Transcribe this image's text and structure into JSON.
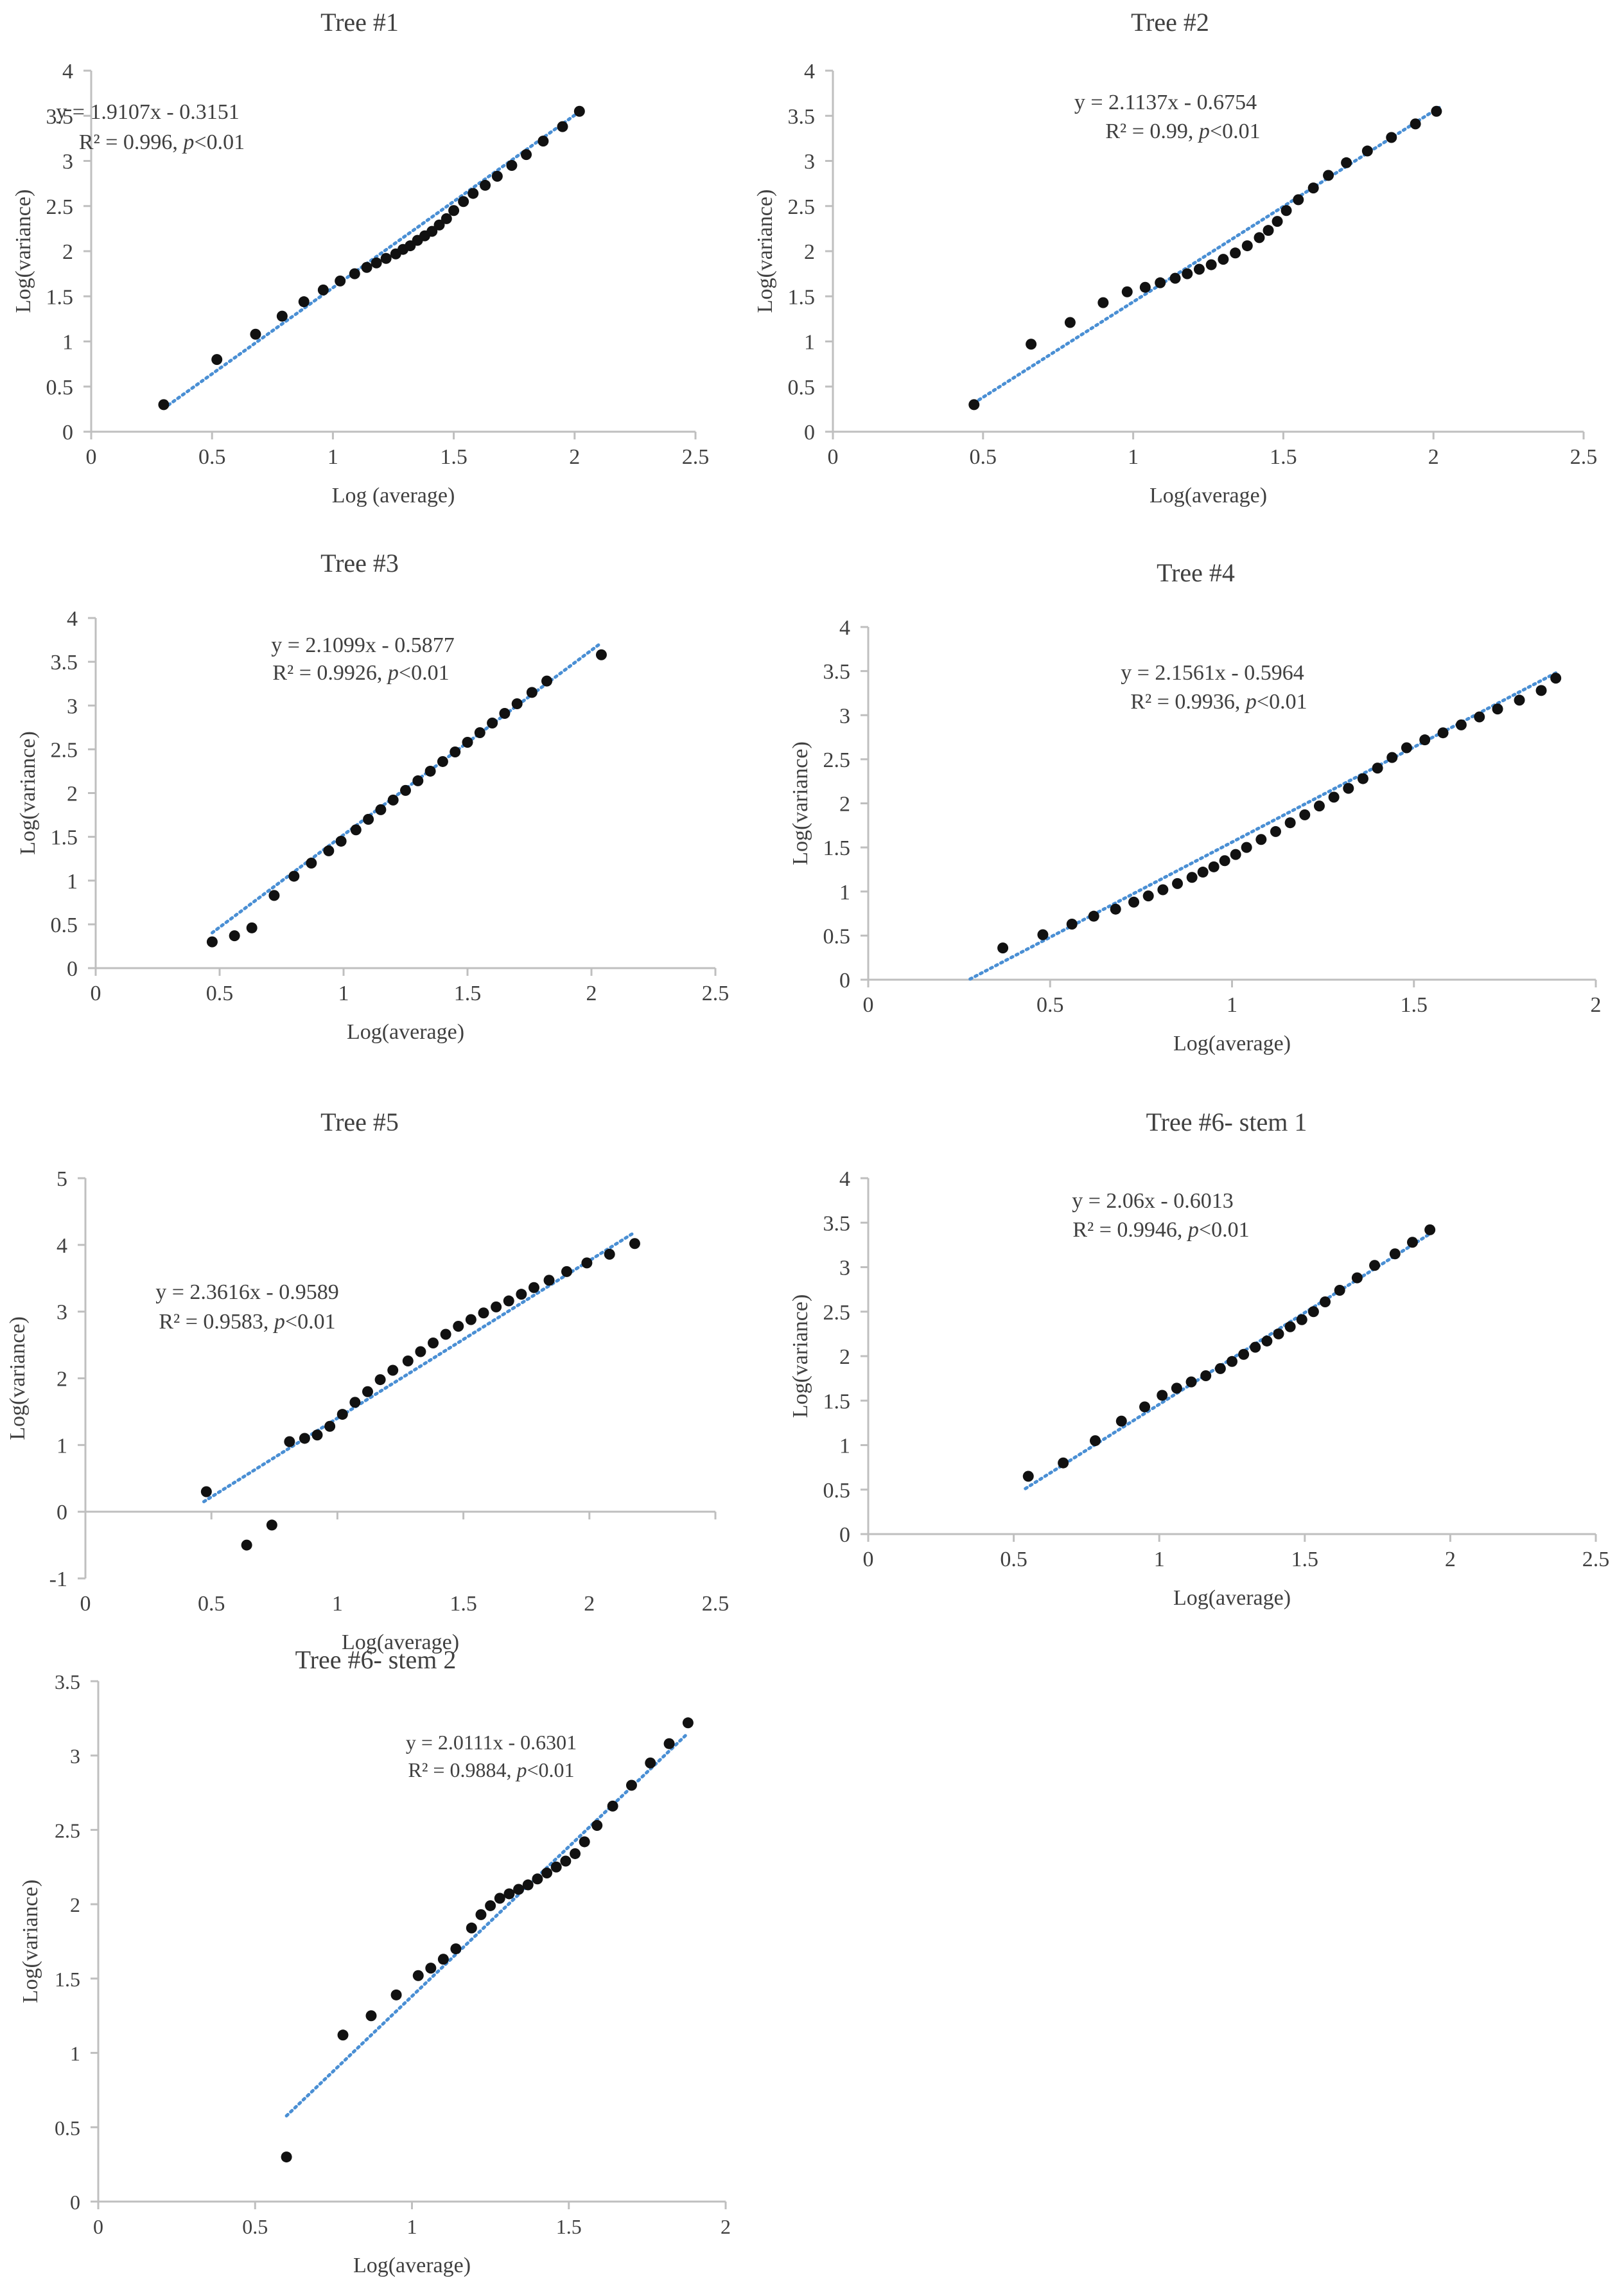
{
  "colors": {
    "point": "#111111",
    "trend": "#4a8fd4",
    "axis": "#bfbfbf",
    "text": "#404040"
  },
  "chart_data": [
    {
      "type": "scatter",
      "title": "Tree #1",
      "xlabel": "Log (average)",
      "ylabel": "Log(variance)",
      "xlim": [
        0,
        2.5
      ],
      "ylim": [
        0,
        4
      ],
      "xticks": [
        0,
        0.5,
        1,
        1.5,
        2,
        2.5
      ],
      "yticks": [
        0,
        0.5,
        1,
        1.5,
        2,
        2.5,
        3,
        3.5,
        4
      ],
      "xtick_labels": [
        "0",
        "0.5",
        "1",
        "1.5",
        "2",
        "2.5"
      ],
      "ytick_labels": [
        "0",
        "0.5",
        "1",
        "1.5",
        "2",
        "2.5",
        "3",
        "3.5",
        "4"
      ],
      "equation": "y = 1.9107x - 0.3151",
      "r2_text": "R² = 0.996, ",
      "p_italic": "p",
      "p_text": "<0.01",
      "trend": {
        "slope": 1.9107,
        "intercept": -0.3151,
        "x_range": [
          0.3,
          2.02
        ]
      },
      "points": [
        [
          0.3,
          0.3
        ],
        [
          0.52,
          0.8
        ],
        [
          0.68,
          1.08
        ],
        [
          0.79,
          1.28
        ],
        [
          0.88,
          1.44
        ],
        [
          0.96,
          1.57
        ],
        [
          1.03,
          1.67
        ],
        [
          1.09,
          1.75
        ],
        [
          1.14,
          1.82
        ],
        [
          1.18,
          1.87
        ],
        [
          1.22,
          1.92
        ],
        [
          1.26,
          1.97
        ],
        [
          1.29,
          2.02
        ],
        [
          1.32,
          2.06
        ],
        [
          1.35,
          2.12
        ],
        [
          1.38,
          2.17
        ],
        [
          1.41,
          2.22
        ],
        [
          1.44,
          2.29
        ],
        [
          1.47,
          2.36
        ],
        [
          1.5,
          2.45
        ],
        [
          1.54,
          2.55
        ],
        [
          1.58,
          2.64
        ],
        [
          1.63,
          2.73
        ],
        [
          1.68,
          2.83
        ],
        [
          1.74,
          2.95
        ],
        [
          1.8,
          3.07
        ],
        [
          1.87,
          3.22
        ],
        [
          1.95,
          3.38
        ],
        [
          2.02,
          3.55
        ]
      ]
    },
    {
      "type": "scatter",
      "title": "Tree #2",
      "xlabel": "Log(average)",
      "ylabel": "Log(variance)",
      "xlim": [
        0,
        2.5
      ],
      "ylim": [
        0,
        4
      ],
      "xticks": [
        0,
        0.5,
        1,
        1.5,
        2,
        2.5
      ],
      "yticks": [
        0,
        0.5,
        1,
        1.5,
        2,
        2.5,
        3,
        3.5,
        4
      ],
      "xtick_labels": [
        "0",
        "0.5",
        "1",
        "1.5",
        "2",
        "2.5"
      ],
      "ytick_labels": [
        "0",
        "0.5",
        "1",
        "1.5",
        "2",
        "2.5",
        "3",
        "3.5",
        "4"
      ],
      "equation": "y = 2.1137x - 0.6754",
      "r2_text": "R² = 0.99, ",
      "p_italic": "p",
      "p_text": "<0.01",
      "trend": {
        "slope": 2.1137,
        "intercept": -0.6754,
        "x_range": [
          0.47,
          2.02
        ]
      },
      "points": [
        [
          0.47,
          0.3
        ],
        [
          0.66,
          0.97
        ],
        [
          0.79,
          1.21
        ],
        [
          0.9,
          1.43
        ],
        [
          0.98,
          1.55
        ],
        [
          1.04,
          1.6
        ],
        [
          1.09,
          1.65
        ],
        [
          1.14,
          1.7
        ],
        [
          1.18,
          1.75
        ],
        [
          1.22,
          1.8
        ],
        [
          1.26,
          1.85
        ],
        [
          1.3,
          1.91
        ],
        [
          1.34,
          1.98
        ],
        [
          1.38,
          2.06
        ],
        [
          1.42,
          2.15
        ],
        [
          1.45,
          2.23
        ],
        [
          1.48,
          2.33
        ],
        [
          1.51,
          2.45
        ],
        [
          1.55,
          2.57
        ],
        [
          1.6,
          2.7
        ],
        [
          1.65,
          2.84
        ],
        [
          1.71,
          2.98
        ],
        [
          1.78,
          3.11
        ],
        [
          1.86,
          3.26
        ],
        [
          1.94,
          3.41
        ],
        [
          2.01,
          3.55
        ]
      ]
    },
    {
      "type": "scatter",
      "title": "Tree #3",
      "xlabel": "Log(average)",
      "ylabel": "Log(variance)",
      "xlim": [
        0,
        2.5
      ],
      "ylim": [
        0,
        4
      ],
      "xticks": [
        0,
        0.5,
        1,
        1.5,
        2,
        2.5
      ],
      "yticks": [
        0,
        0.5,
        1,
        1.5,
        2,
        2.5,
        3,
        3.5,
        4
      ],
      "xtick_labels": [
        "0",
        "0.5",
        "1",
        "1.5",
        "2",
        "2.5"
      ],
      "ytick_labels": [
        "0",
        "0.5",
        "1",
        "1.5",
        "2",
        "2.5",
        "3",
        "3.5",
        "4"
      ],
      "equation": "y = 2.1099x - 0.5877",
      "r2_text": "R² = 0.9926, ",
      "p_italic": "p",
      "p_text": "<0.01",
      "trend": {
        "slope": 2.1099,
        "intercept": -0.5877,
        "x_range": [
          0.47,
          2.04
        ]
      },
      "points": [
        [
          0.47,
          0.3
        ],
        [
          0.56,
          0.37
        ],
        [
          0.63,
          0.46
        ],
        [
          0.72,
          0.83
        ],
        [
          0.8,
          1.05
        ],
        [
          0.87,
          1.2
        ],
        [
          0.94,
          1.34
        ],
        [
          0.99,
          1.45
        ],
        [
          1.05,
          1.58
        ],
        [
          1.1,
          1.7
        ],
        [
          1.15,
          1.81
        ],
        [
          1.2,
          1.92
        ],
        [
          1.25,
          2.03
        ],
        [
          1.3,
          2.14
        ],
        [
          1.35,
          2.25
        ],
        [
          1.4,
          2.36
        ],
        [
          1.45,
          2.47
        ],
        [
          1.5,
          2.58
        ],
        [
          1.55,
          2.69
        ],
        [
          1.6,
          2.8
        ],
        [
          1.65,
          2.91
        ],
        [
          1.7,
          3.02
        ],
        [
          1.76,
          3.15
        ],
        [
          1.82,
          3.28
        ],
        [
          2.04,
          3.58
        ]
      ]
    },
    {
      "type": "scatter",
      "title": "Tree #4",
      "xlabel": "Log(average)",
      "ylabel": "Log(variance)",
      "xlim": [
        0,
        2
      ],
      "ylim": [
        0,
        4
      ],
      "xticks": [
        0,
        0.5,
        1,
        1.5,
        2
      ],
      "yticks": [
        0,
        0.5,
        1,
        1.5,
        2,
        2.5,
        3,
        3.5,
        4
      ],
      "xtick_labels": [
        "0",
        "0.5",
        "1",
        "1.5",
        "2"
      ],
      "ytick_labels": [
        "0",
        "0.5",
        "1",
        "1.5",
        "2",
        "2.5",
        "3",
        "3.5",
        "4"
      ],
      "equation": "y = 2.1561x - 0.5964",
      "r2_text": "R² = 0.9936, ",
      "p_italic": "p",
      "p_text": "<0.01",
      "trend": {
        "slope": 2.1561,
        "intercept": -0.5964,
        "x_range": [
          0.28,
          1.89
        ]
      },
      "points": [
        [
          0.37,
          0.36
        ],
        [
          0.48,
          0.51
        ],
        [
          0.56,
          0.63
        ],
        [
          0.62,
          0.72
        ],
        [
          0.68,
          0.8
        ],
        [
          0.73,
          0.88
        ],
        [
          0.77,
          0.95
        ],
        [
          0.81,
          1.02
        ],
        [
          0.85,
          1.09
        ],
        [
          0.89,
          1.16
        ],
        [
          0.92,
          1.22
        ],
        [
          0.95,
          1.28
        ],
        [
          0.98,
          1.35
        ],
        [
          1.01,
          1.42
        ],
        [
          1.04,
          1.5
        ],
        [
          1.08,
          1.59
        ],
        [
          1.12,
          1.68
        ],
        [
          1.16,
          1.78
        ],
        [
          1.2,
          1.87
        ],
        [
          1.24,
          1.97
        ],
        [
          1.28,
          2.07
        ],
        [
          1.32,
          2.17
        ],
        [
          1.36,
          2.28
        ],
        [
          1.4,
          2.4
        ],
        [
          1.44,
          2.52
        ],
        [
          1.48,
          2.63
        ],
        [
          1.53,
          2.72
        ],
        [
          1.58,
          2.8
        ],
        [
          1.63,
          2.89
        ],
        [
          1.68,
          2.98
        ],
        [
          1.73,
          3.07
        ],
        [
          1.79,
          3.17
        ],
        [
          1.85,
          3.28
        ],
        [
          1.89,
          3.42
        ]
      ]
    },
    {
      "type": "scatter",
      "title": "Tree #5",
      "xlabel": "Log(average)",
      "ylabel": "Log(variance)",
      "xlim": [
        0,
        2.5
      ],
      "ylim": [
        -1,
        5
      ],
      "xticks": [
        0,
        0.5,
        1,
        1.5,
        2,
        2.5
      ],
      "yticks": [
        -1,
        0,
        1,
        2,
        3,
        4,
        5
      ],
      "xtick_labels": [
        "0",
        "0.5",
        "1",
        "1.5",
        "2",
        "2.5"
      ],
      "ytick_labels": [
        "-1",
        "0",
        "1",
        "2",
        "3",
        "4",
        "5"
      ],
      "equation": "y = 2.3616x - 0.9589",
      "r2_text": "R² = 0.9583, ",
      "p_italic": "p",
      "p_text": "<0.01",
      "trend": {
        "slope": 2.3616,
        "intercept": -0.9589,
        "x_range": [
          0.47,
          2.18
        ]
      },
      "points": [
        [
          0.48,
          0.3
        ],
        [
          0.64,
          -0.5
        ],
        [
          0.74,
          -0.2
        ],
        [
          0.81,
          1.05
        ],
        [
          0.87,
          1.1
        ],
        [
          0.92,
          1.15
        ],
        [
          0.97,
          1.28
        ],
        [
          1.02,
          1.46
        ],
        [
          1.07,
          1.64
        ],
        [
          1.12,
          1.8
        ],
        [
          1.17,
          1.98
        ],
        [
          1.22,
          2.12
        ],
        [
          1.28,
          2.26
        ],
        [
          1.33,
          2.4
        ],
        [
          1.38,
          2.53
        ],
        [
          1.43,
          2.66
        ],
        [
          1.48,
          2.78
        ],
        [
          1.53,
          2.88
        ],
        [
          1.58,
          2.98
        ],
        [
          1.63,
          3.07
        ],
        [
          1.68,
          3.16
        ],
        [
          1.73,
          3.26
        ],
        [
          1.78,
          3.36
        ],
        [
          1.84,
          3.47
        ],
        [
          1.91,
          3.6
        ],
        [
          1.99,
          3.73
        ],
        [
          2.08,
          3.86
        ],
        [
          2.18,
          4.02
        ]
      ]
    },
    {
      "type": "scatter",
      "title": "Tree #6- stem 1",
      "xlabel": "Log(average)",
      "ylabel": "Log(variance)",
      "xlim": [
        0,
        2.5
      ],
      "ylim": [
        0,
        4
      ],
      "xticks": [
        0,
        0.5,
        1,
        1.5,
        2,
        2.5
      ],
      "yticks": [
        0,
        0.5,
        1,
        1.5,
        2,
        2.5,
        3,
        3.5,
        4
      ],
      "xtick_labels": [
        "0",
        "0.5",
        "1",
        "1.5",
        "2",
        "2.5"
      ],
      "ytick_labels": [
        "0",
        "0.5",
        "1",
        "1.5",
        "2",
        "2.5",
        "3",
        "3.5",
        "4"
      ],
      "equation": "y = 2.06x - 0.6013",
      "r2_text": "R² = 0.9946, ",
      "p_italic": "p",
      "p_text": "<0.01",
      "trend": {
        "slope": 2.06,
        "intercept": -0.6013,
        "x_range": [
          0.54,
          1.93
        ]
      },
      "points": [
        [
          0.55,
          0.65
        ],
        [
          0.67,
          0.8
        ],
        [
          0.78,
          1.05
        ],
        [
          0.87,
          1.27
        ],
        [
          0.95,
          1.43
        ],
        [
          1.01,
          1.56
        ],
        [
          1.06,
          1.64
        ],
        [
          1.11,
          1.71
        ],
        [
          1.16,
          1.78
        ],
        [
          1.21,
          1.86
        ],
        [
          1.25,
          1.94
        ],
        [
          1.29,
          2.02
        ],
        [
          1.33,
          2.1
        ],
        [
          1.37,
          2.17
        ],
        [
          1.41,
          2.25
        ],
        [
          1.45,
          2.33
        ],
        [
          1.49,
          2.41
        ],
        [
          1.53,
          2.5
        ],
        [
          1.57,
          2.61
        ],
        [
          1.62,
          2.74
        ],
        [
          1.68,
          2.88
        ],
        [
          1.74,
          3.02
        ],
        [
          1.81,
          3.15
        ],
        [
          1.87,
          3.28
        ],
        [
          1.93,
          3.42
        ]
      ]
    },
    {
      "type": "scatter",
      "title": "Tree #6- stem 2",
      "xlabel": "Log(average)",
      "ylabel": "Log(variance)",
      "xlim": [
        0,
        2
      ],
      "ylim": [
        0,
        3.5
      ],
      "xticks": [
        0,
        0.5,
        1,
        1.5,
        2
      ],
      "yticks": [
        0,
        0.5,
        1,
        1.5,
        2,
        2.5,
        3,
        3.5
      ],
      "xtick_labels": [
        "0",
        "0.5",
        "1",
        "1.5",
        "2"
      ],
      "ytick_labels": [
        "0",
        "0.5",
        "1",
        "1.5",
        "2",
        "2.5",
        "3",
        "3.5"
      ],
      "equation": "y = 2.0111x - 0.6301",
      "r2_text": "R² = 0.9884, ",
      "p_italic": "p",
      "p_text": "<0.01",
      "trend": {
        "slope": 2.0111,
        "intercept": -0.6301,
        "x_range": [
          0.6,
          1.88
        ]
      },
      "points": [
        [
          0.6,
          0.3
        ],
        [
          0.78,
          1.12
        ],
        [
          0.87,
          1.25
        ],
        [
          0.95,
          1.39
        ],
        [
          1.02,
          1.52
        ],
        [
          1.06,
          1.57
        ],
        [
          1.1,
          1.63
        ],
        [
          1.14,
          1.7
        ],
        [
          1.19,
          1.84
        ],
        [
          1.22,
          1.93
        ],
        [
          1.25,
          1.99
        ],
        [
          1.28,
          2.04
        ],
        [
          1.31,
          2.07
        ],
        [
          1.34,
          2.1
        ],
        [
          1.37,
          2.13
        ],
        [
          1.4,
          2.17
        ],
        [
          1.43,
          2.21
        ],
        [
          1.46,
          2.25
        ],
        [
          1.49,
          2.29
        ],
        [
          1.52,
          2.34
        ],
        [
          1.55,
          2.42
        ],
        [
          1.59,
          2.53
        ],
        [
          1.64,
          2.66
        ],
        [
          1.7,
          2.8
        ],
        [
          1.76,
          2.95
        ],
        [
          1.82,
          3.08
        ],
        [
          1.88,
          3.22
        ]
      ]
    }
  ]
}
